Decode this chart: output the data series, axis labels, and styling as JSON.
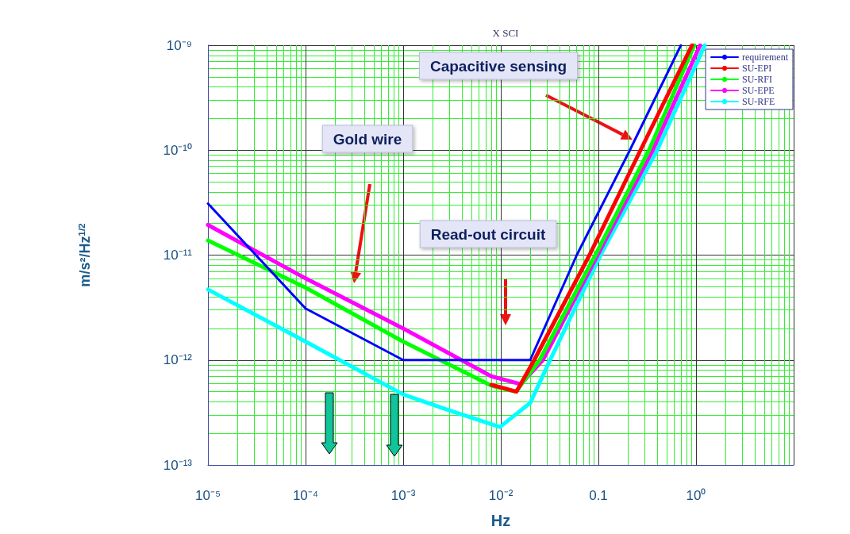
{
  "chart_data": {
    "type": "line",
    "title": "X SCI",
    "xlabel": "Hz",
    "ylabel": "m/s²/Hz$^{1/2}$",
    "log": "xy",
    "grid": true,
    "legend": "top right",
    "marker": "none",
    "line_style": "solid",
    "xlim": [
      1e-05,
      10
    ],
    "ylim": [
      1e-13,
      1e-09
    ],
    "xticks": [
      {
        "value": 1e-05,
        "label": "10⁻⁵"
      },
      {
        "value": 2e-05,
        "label": null
      },
      {
        "value": 3e-05,
        "label": null
      },
      {
        "value": 4e-05,
        "label": null
      },
      {
        "value": 5e-05,
        "label": null
      },
      {
        "value": 6e-05,
        "label": null
      },
      {
        "value": 7e-05,
        "label": null
      },
      {
        "value": 8e-05,
        "label": null
      },
      {
        "value": 9e-05,
        "label": null
      },
      {
        "value": 0.0001,
        "label": "10⁻⁴"
      },
      {
        "value": 0.0002,
        "label": null
      },
      {
        "value": 0.0003,
        "label": null
      },
      {
        "value": 0.0004,
        "label": null
      },
      {
        "value": 0.0005,
        "label": null
      },
      {
        "value": 0.0006,
        "label": null
      },
      {
        "value": 0.0007,
        "label": null
      },
      {
        "value": 0.0008,
        "label": null
      },
      {
        "value": 0.0009,
        "label": null
      },
      {
        "value": 0.001,
        "label": "10⁻³"
      },
      {
        "value": 0.002,
        "label": null
      },
      {
        "value": 0.003,
        "label": null
      },
      {
        "value": 0.004,
        "label": null
      },
      {
        "value": 0.005,
        "label": null
      },
      {
        "value": 0.006,
        "label": null
      },
      {
        "value": 0.007,
        "label": null
      },
      {
        "value": 0.008,
        "label": null
      },
      {
        "value": 0.009,
        "label": null
      },
      {
        "value": 0.01,
        "label": "10⁻²"
      },
      {
        "value": 0.02,
        "label": null
      },
      {
        "value": 0.03,
        "label": null
      },
      {
        "value": 0.04,
        "label": null
      },
      {
        "value": 0.05,
        "label": null
      },
      {
        "value": 0.06,
        "label": null
      },
      {
        "value": 0.07,
        "label": null
      },
      {
        "value": 0.08,
        "label": null
      },
      {
        "value": 0.09,
        "label": null
      },
      {
        "value": 0.1,
        "label": "0.1"
      },
      {
        "value": 0.2,
        "label": null
      },
      {
        "value": 0.3,
        "label": null
      },
      {
        "value": 0.4,
        "label": null
      },
      {
        "value": 0.5,
        "label": null
      },
      {
        "value": 0.6,
        "label": null
      },
      {
        "value": 0.7,
        "label": null
      },
      {
        "value": 0.8,
        "label": null
      },
      {
        "value": 0.9,
        "label": null
      },
      {
        "value": 1,
        "label": "10⁰"
      },
      {
        "value": 2,
        "label": null
      },
      {
        "value": 3,
        "label": null
      },
      {
        "value": 4,
        "label": null
      },
      {
        "value": 5,
        "label": null
      },
      {
        "value": 6,
        "label": null
      },
      {
        "value": 7,
        "label": null
      },
      {
        "value": 8,
        "label": null
      },
      {
        "value": 9,
        "label": null
      },
      {
        "value": 10,
        "label": null
      }
    ],
    "yticks": [
      {
        "value": 1e-13,
        "label": "10⁻¹³"
      },
      {
        "value": 2e-13,
        "label": null
      },
      {
        "value": 3e-13,
        "label": null
      },
      {
        "value": 4e-13,
        "label": null
      },
      {
        "value": 5e-13,
        "label": null
      },
      {
        "value": 6e-13,
        "label": null
      },
      {
        "value": 7e-13,
        "label": null
      },
      {
        "value": 8e-13,
        "label": null
      },
      {
        "value": 9e-13,
        "label": null
      },
      {
        "value": 1e-12,
        "label": "10⁻¹²"
      },
      {
        "value": 2e-12,
        "label": null
      },
      {
        "value": 3e-12,
        "label": null
      },
      {
        "value": 4e-12,
        "label": null
      },
      {
        "value": 5e-12,
        "label": null
      },
      {
        "value": 6e-12,
        "label": null
      },
      {
        "value": 7e-12,
        "label": null
      },
      {
        "value": 8e-12,
        "label": null
      },
      {
        "value": 9e-12,
        "label": null
      },
      {
        "value": 1e-11,
        "label": "10⁻¹¹"
      },
      {
        "value": 2e-11,
        "label": null
      },
      {
        "value": 3e-11,
        "label": null
      },
      {
        "value": 4e-11,
        "label": null
      },
      {
        "value": 5e-11,
        "label": null
      },
      {
        "value": 6e-11,
        "label": null
      },
      {
        "value": 7e-11,
        "label": null
      },
      {
        "value": 8e-11,
        "label": null
      },
      {
        "value": 9e-11,
        "label": null
      },
      {
        "value": 1e-10,
        "label": "10⁻¹⁰"
      },
      {
        "value": 2e-10,
        "label": null
      },
      {
        "value": 3e-10,
        "label": null
      },
      {
        "value": 4e-10,
        "label": null
      },
      {
        "value": 5e-10,
        "label": null
      },
      {
        "value": 6e-10,
        "label": null
      },
      {
        "value": 7e-10,
        "label": null
      },
      {
        "value": 8e-10,
        "label": null
      },
      {
        "value": 9e-10,
        "label": null
      },
      {
        "value": 1e-09,
        "label": "10⁻⁹"
      }
    ],
    "annotations": [
      "Capacitive sensing",
      "Gold wire",
      "Read-out circuit"
    ],
    "series": [
      {
        "name": "requirement",
        "color": "#0000ff",
        "x": [
          1e-05,
          0.0001,
          0.001,
          0.02,
          0.06,
          0.21,
          0.7
        ],
        "values": [
          3.1e-11,
          3.1e-12,
          1e-12,
          1e-12,
          1e-11,
          1e-10,
          1e-09
        ]
      },
      {
        "name": "SU-EPI",
        "color": "#ff0000",
        "x": [
          0.008,
          0.0145,
          0.022,
          0.081,
          0.27,
          0.91
        ],
        "values": [
          5.8e-13,
          5e-13,
          1e-12,
          1e-11,
          1e-10,
          1e-09
        ]
      },
      {
        "name": "SU-RFI",
        "color": "#00ff00",
        "x": [
          1e-05,
          0.0001,
          0.001,
          0.008,
          0.0143,
          0.025,
          0.093,
          0.33,
          0.96
        ],
        "values": [
          1.38e-11,
          4.9e-12,
          1.5e-12,
          5.7e-13,
          5e-13,
          1e-12,
          1e-11,
          1e-10,
          1e-09
        ]
      },
      {
        "name": "SU-EPE",
        "color": "#ff00ff",
        "x": [
          1e-05,
          0.0001,
          0.001,
          0.008,
          0.016,
          0.027,
          0.098,
          0.36,
          1.1
        ],
        "values": [
          1.94e-11,
          6e-12,
          2e-12,
          7e-13,
          5.9e-13,
          1e-12,
          1e-11,
          1e-10,
          1e-09
        ]
      },
      {
        "name": "SU-RFE",
        "color": "#00ffff",
        "x": [
          1e-05,
          0.0001,
          0.001,
          0.003,
          0.0098,
          0.02,
          0.032,
          0.105,
          0.4,
          1.23
        ],
        "values": [
          4.7e-12,
          1.5e-12,
          4.7e-13,
          3.3e-13,
          2.3e-13,
          3.9e-13,
          1e-12,
          1e-11,
          1e-10,
          1e-09
        ]
      }
    ]
  }
}
